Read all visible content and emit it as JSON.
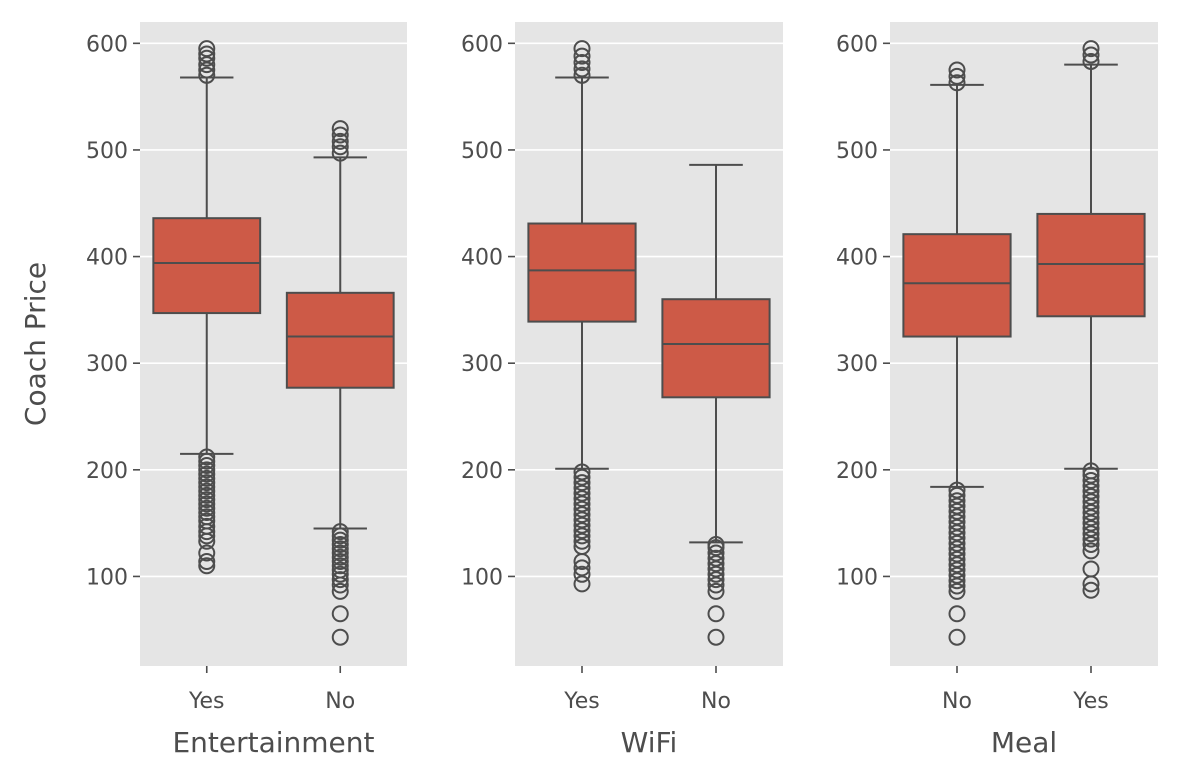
{
  "chart_data": [
    {
      "type": "box",
      "xlabel": "Entertainment",
      "ylabel": "Coach Price",
      "ylim": [
        16,
        620
      ],
      "yticks": [
        100,
        200,
        300,
        400,
        500,
        600
      ],
      "grid": true,
      "categories": [
        "Yes",
        "No"
      ],
      "boxes": [
        {
          "category": "Yes",
          "whisker_low": 215,
          "q1": 347,
          "median": 394,
          "q3": 436,
          "whisker_high": 568,
          "outliers": [
            110,
            114,
            122,
            133,
            138,
            142,
            147,
            152,
            156,
            160,
            164,
            168,
            172,
            176,
            180,
            184,
            188,
            192,
            196,
            200,
            204,
            208,
            212,
            570,
            575,
            580,
            586,
            590,
            595
          ]
        },
        {
          "category": "No",
          "whisker_low": 145,
          "q1": 277,
          "median": 325,
          "q3": 366,
          "whisker_high": 493,
          "outliers": [
            43,
            65,
            86,
            92,
            97,
            102,
            106,
            110,
            114,
            118,
            122,
            126,
            130,
            134,
            138,
            142,
            497,
            503,
            508,
            514,
            520
          ]
        }
      ]
    },
    {
      "type": "box",
      "xlabel": "WiFi",
      "ylabel": "",
      "ylim": [
        16,
        620
      ],
      "yticks": [
        100,
        200,
        300,
        400,
        500,
        600
      ],
      "grid": true,
      "categories": [
        "Yes",
        "No"
      ],
      "boxes": [
        {
          "category": "Yes",
          "whisker_low": 201,
          "q1": 339,
          "median": 387,
          "q3": 431,
          "whisker_high": 568,
          "outliers": [
            93,
            102,
            108,
            114,
            128,
            133,
            138,
            143,
            148,
            153,
            158,
            163,
            168,
            173,
            178,
            183,
            188,
            193,
            198,
            570,
            576,
            582,
            588,
            595
          ]
        },
        {
          "category": "No",
          "whisker_low": 132,
          "q1": 268,
          "median": 318,
          "q3": 360,
          "whisker_high": 486,
          "outliers": [
            43,
            65,
            86,
            92,
            97,
            102,
            107,
            112,
            117,
            122,
            127,
            130
          ]
        }
      ]
    },
    {
      "type": "box",
      "xlabel": "Meal",
      "ylabel": "",
      "ylim": [
        16,
        620
      ],
      "yticks": [
        100,
        200,
        300,
        400,
        500,
        600
      ],
      "grid": true,
      "categories": [
        "No",
        "Yes"
      ],
      "boxes": [
        {
          "category": "No",
          "whisker_low": 184,
          "q1": 325,
          "median": 375,
          "q3": 421,
          "whisker_high": 561,
          "outliers": [
            43,
            65,
            86,
            91,
            96,
            101,
            106,
            111,
            116,
            121,
            126,
            131,
            136,
            141,
            146,
            151,
            156,
            161,
            166,
            171,
            176,
            181,
            563,
            569,
            575
          ]
        },
        {
          "category": "Yes",
          "whisker_low": 201,
          "q1": 344,
          "median": 393,
          "q3": 440,
          "whisker_high": 580,
          "outliers": [
            87,
            93,
            107,
            124,
            130,
            135,
            140,
            145,
            150,
            155,
            160,
            165,
            170,
            175,
            180,
            185,
            190,
            195,
            199,
            583,
            589,
            595
          ]
        }
      ]
    }
  ],
  "style": {
    "panel_bg": "#e5e5e5",
    "grid_color": "#ffffff",
    "box_fill": "#cd5a47",
    "line_color": "#4d4d4d",
    "text_color": "#4d4d4d"
  }
}
